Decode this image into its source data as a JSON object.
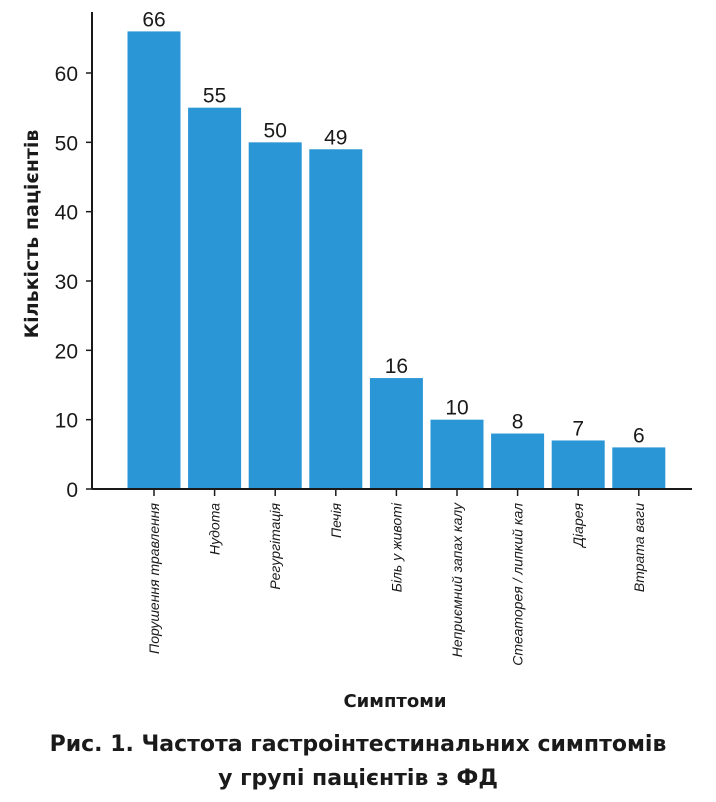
{
  "chart_data": {
    "type": "bar",
    "categories": [
      "Порушення травлення",
      "Нудота",
      "Регургітація",
      "Печія",
      "Біль у животі",
      "Неприємний запах калу",
      "Стеаторея / липкий кал",
      "Діарея",
      "Втрата ваги"
    ],
    "values": [
      66,
      55,
      50,
      49,
      16,
      10,
      8,
      7,
      6
    ],
    "xlabel": "Симптоми",
    "ylabel": "Кількість пацієнтів",
    "ylim": [
      0,
      68
    ],
    "yticks": [
      0,
      10,
      20,
      30,
      40,
      50,
      60
    ],
    "grid": false,
    "bar_color": "#2a96d6"
  },
  "caption": {
    "line1": "Рис. 1. Частота гастроінтестинальних симптомів",
    "line2": "у групі пацієнтів з ФД"
  }
}
